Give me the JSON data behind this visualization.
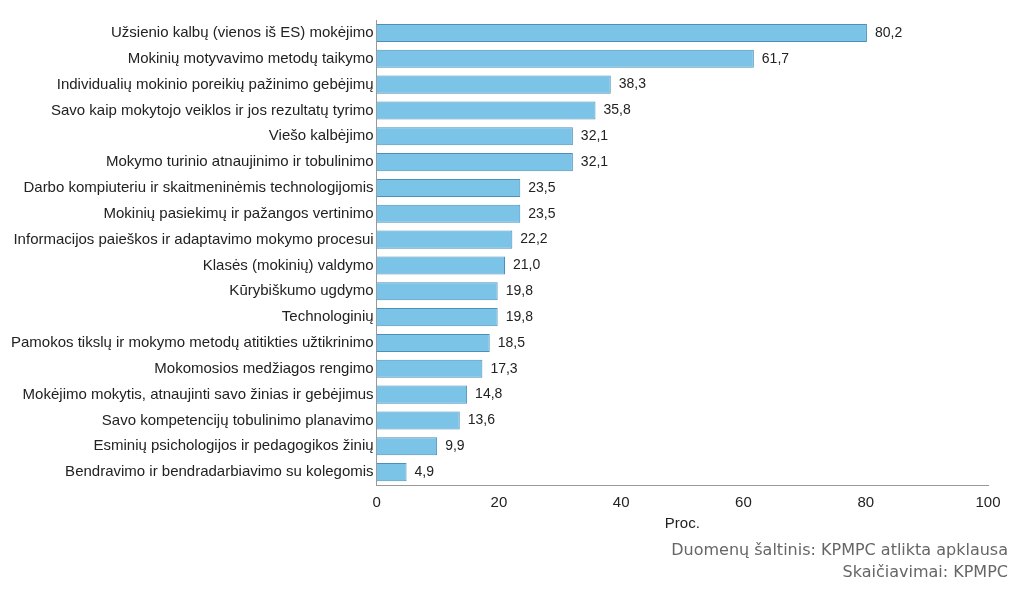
{
  "chart_data": {
    "type": "bar",
    "orientation": "horizontal",
    "xlabel": "Proc.",
    "categories": [
      "Užsienio kalbų (vienos iš ES) mokėjimo",
      "Mokinių motyvavimo metodų taikymo",
      "Individualių mokinio poreikių pažinimo gebėjimų",
      "Savo kaip mokytojo veiklos ir jos rezultatų tyrimo",
      "Viešo kalbėjimo",
      "Mokymo turinio atnaujinimo ir tobulinimo",
      "Darbo kompiuteriu ir skaitmeninėmis technologijomis",
      "Mokinių pasiekimų ir pažangos vertinimo",
      "Informacijos paieškos ir adaptavimo mokymo procesui",
      "Klasės (mokinių) valdymo",
      "Kūrybiškumo ugdymo",
      "Technologinių",
      "Pamokos tikslų ir mokymo metodų atitikties užtikrinimo",
      "Mokomosios medžiagos rengimo",
      "Mokėjimo mokytis, atnaujinti savo žinias ir gebėjimus",
      "Savo kompetencijų tobulinimo planavimo",
      "Esminių psichologijos ir pedagogikos žinių",
      "Bendravimo ir bendradarbiavimo su kolegomis"
    ],
    "values": [
      80.2,
      61.7,
      38.3,
      35.8,
      32.1,
      32.1,
      23.5,
      23.5,
      22.2,
      21.0,
      19.8,
      19.8,
      18.5,
      17.3,
      14.8,
      13.6,
      9.9,
      4.9
    ],
    "value_labels": [
      "80,2",
      "61,7",
      "38,3",
      "35,8",
      "32,1",
      "32,1",
      "23,5",
      "23,5",
      "22,2",
      "21,0",
      "19,8",
      "19,8",
      "18,5",
      "17,3",
      "14,8",
      "13,6",
      "9,9",
      "4,9"
    ],
    "color": "#7cc3e8",
    "xlim": [
      0,
      100
    ],
    "xticks": [
      0,
      20,
      40,
      60,
      80,
      100
    ],
    "grid": false,
    "legend": false,
    "annotations": [
      "Duomenų šaltinis: KPMPC atlikta apklausa",
      "Skaičiavimai: KPMPC"
    ]
  }
}
